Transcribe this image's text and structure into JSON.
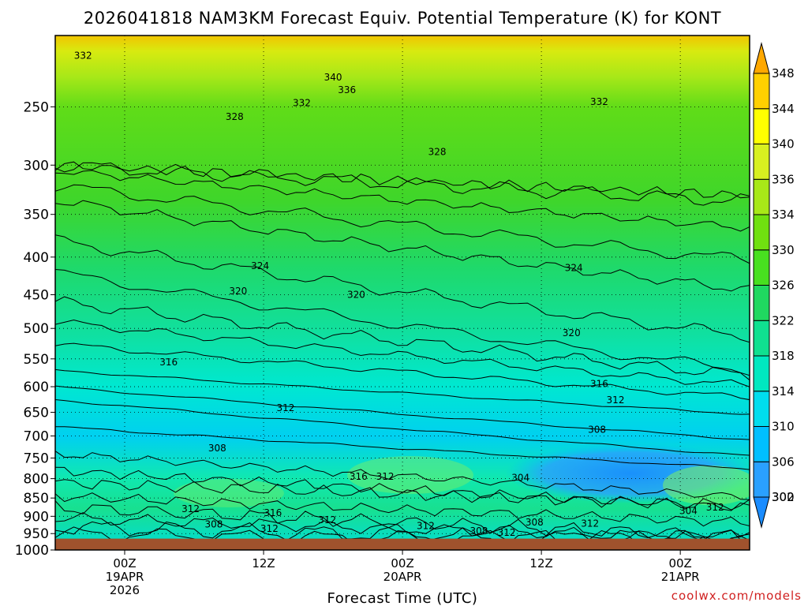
{
  "chart_data": {
    "type": "heatmap",
    "title": "2026041818 NAM3KM Forecast Equiv. Potential Temperature (K) for KONT",
    "xlabel": "Forecast Time (UTC)",
    "ylabel": "",
    "y_scale": "log-pressure",
    "y_inverted": true,
    "ylim": [
      1000,
      200
    ],
    "y_ticks": [
      250,
      300,
      350,
      400,
      450,
      500,
      550,
      600,
      650,
      700,
      750,
      800,
      850,
      900,
      950,
      1000
    ],
    "x_ticks": [
      {
        "line1": "00Z",
        "line2": "19APR",
        "line3": "2026"
      },
      {
        "line1": "12Z",
        "line2": "",
        "line3": ""
      },
      {
        "line1": "00Z",
        "line2": "20APR",
        "line3": ""
      },
      {
        "line1": "12Z",
        "line2": "",
        "line3": ""
      },
      {
        "line1": "00Z",
        "line2": "21APR",
        "line3": ""
      }
    ],
    "colorbar": {
      "levels": [
        300,
        302,
        306,
        310,
        314,
        318,
        322,
        326,
        330,
        334,
        336,
        340,
        344,
        348
      ],
      "colors": [
        "#1a8cff",
        "#2aa0ff",
        "#00bfff",
        "#00ddee",
        "#00e8c0",
        "#10e090",
        "#20d860",
        "#48e020",
        "#70e010",
        "#a8e818",
        "#d8f020",
        "#ffff00",
        "#ffd000",
        "#ffa800"
      ],
      "extend": "both"
    },
    "ground_color": "#a0522d",
    "contour_labels": [
      {
        "text": "332",
        "t": -3.6,
        "p": 213
      },
      {
        "text": "340",
        "t": 18.0,
        "p": 228
      },
      {
        "text": "336",
        "t": 19.2,
        "p": 237
      },
      {
        "text": "332",
        "t": 15.3,
        "p": 247
      },
      {
        "text": "332",
        "t": 41.0,
        "p": 246
      },
      {
        "text": "328",
        "t": 9.5,
        "p": 258
      },
      {
        "text": "328",
        "t": 27.0,
        "p": 288
      },
      {
        "text": "324",
        "t": 11.7,
        "p": 411
      },
      {
        "text": "324",
        "t": 38.8,
        "p": 414
      },
      {
        "text": "320",
        "t": 9.8,
        "p": 445
      },
      {
        "text": "320",
        "t": 20.0,
        "p": 450
      },
      {
        "text": "320",
        "t": 38.6,
        "p": 507
      },
      {
        "text": "316",
        "t": 3.8,
        "p": 556
      },
      {
        "text": "316",
        "t": 41.0,
        "p": 595
      },
      {
        "text": "312",
        "t": 13.9,
        "p": 641
      },
      {
        "text": "312",
        "t": 42.4,
        "p": 626
      },
      {
        "text": "308",
        "t": 8.0,
        "p": 727
      },
      {
        "text": "308",
        "t": 40.8,
        "p": 686
      },
      {
        "text": "304",
        "t": 34.2,
        "p": 798
      },
      {
        "text": "316",
        "t": 20.2,
        "p": 795
      },
      {
        "text": "312",
        "t": 22.5,
        "p": 795
      },
      {
        "text": "312",
        "t": 5.7,
        "p": 879
      },
      {
        "text": "316",
        "t": 12.8,
        "p": 891
      },
      {
        "text": "308",
        "t": 7.7,
        "p": 923
      },
      {
        "text": "312",
        "t": 12.5,
        "p": 935
      },
      {
        "text": "312",
        "t": 17.5,
        "p": 910
      },
      {
        "text": "312",
        "t": 26.0,
        "p": 927
      },
      {
        "text": "308",
        "t": 30.6,
        "p": 942
      },
      {
        "text": "312",
        "t": 33.0,
        "p": 947
      },
      {
        "text": "308",
        "t": 35.4,
        "p": 917
      },
      {
        "text": "312",
        "t": 40.2,
        "p": 921
      },
      {
        "text": "304",
        "t": 48.7,
        "p": 885
      },
      {
        "text": "312",
        "t": 51.0,
        "p": 875
      }
    ]
  },
  "credit": "coolwx.com/models"
}
